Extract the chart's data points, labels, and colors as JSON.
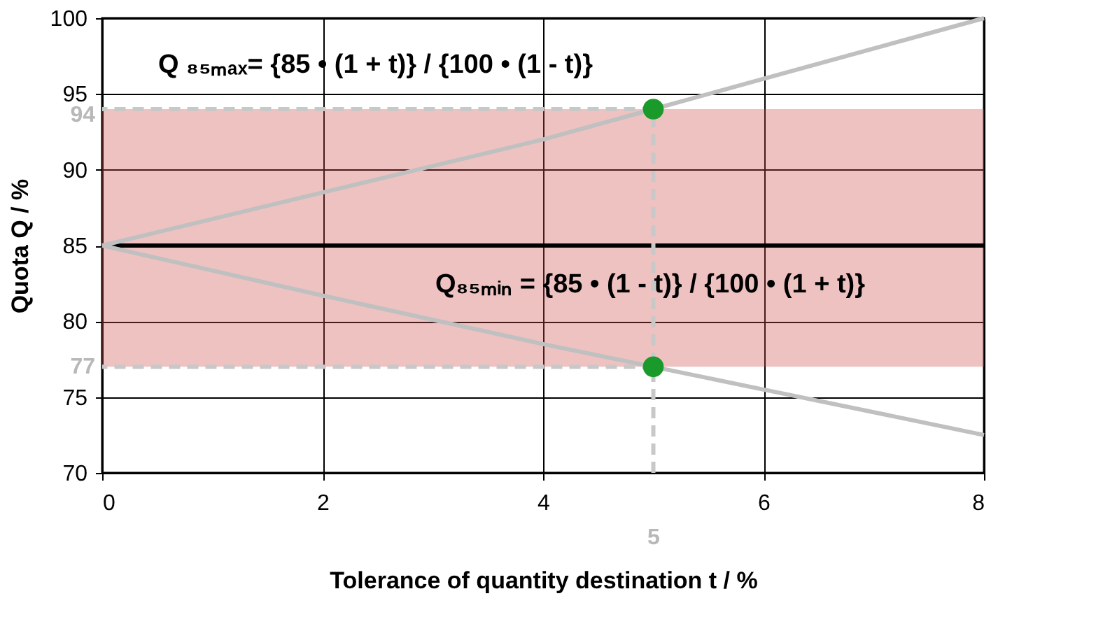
{
  "chart_data": {
    "type": "line",
    "xlabel": "Tolerance of quantity destination t / %",
    "ylabel": "Quota Q / %",
    "xlim": [
      0,
      8
    ],
    "xticks": [
      0,
      2,
      4,
      6,
      8
    ],
    "ylim": [
      70,
      100
    ],
    "yticks": [
      70,
      75,
      80,
      85,
      90,
      95,
      100
    ],
    "grid": true,
    "series": [
      {
        "type": "line",
        "color": "#c0c0c0",
        "x": [
          0,
          2,
          4,
          5,
          6,
          8
        ],
        "values": [
          85,
          88.5,
          92,
          94,
          96,
          100
        ]
      },
      {
        "type": "line",
        "color": "#c0c0c0",
        "x": [
          0,
          2,
          4,
          5,
          6,
          8
        ],
        "values": [
          85,
          81.7,
          78.5,
          77,
          75.5,
          72.5
        ]
      },
      {
        "color": "#c8c8c8",
        "line_style": "dashed",
        "x": [
          5,
          0
        ],
        "values": [
          94,
          94
        ]
      },
      {
        "color": "#c8c8c8",
        "line_style": "dashed",
        "x": [
          5,
          0
        ],
        "values": [
          77,
          77
        ]
      },
      {
        "color": "#c8c8c8",
        "line_style": "dashed",
        "x": [
          5,
          5
        ],
        "values": [
          70,
          94
        ]
      },
      {
        "type": "scatter",
        "color": "#1a9a2a",
        "marker": "circle",
        "x": [
          5,
          5
        ],
        "values": [
          94,
          77
        ]
      }
    ],
    "ref_lines": [
      {
        "axis": "y",
        "value": 85,
        "color": "#000000"
      }
    ],
    "bands": [
      {
        "axis": "y",
        "from": 77,
        "to": 94,
        "color": "#d05050"
      }
    ],
    "annotations": [
      "Q ₈₅ₘₐₓ= {85 • (1 + t)} / {100 • (1 - t)}",
      "Q₈₅ₘᵢₙ = {85 • (1 - t)} / {100 • (1 + t)}",
      "94",
      "77",
      "5"
    ]
  }
}
